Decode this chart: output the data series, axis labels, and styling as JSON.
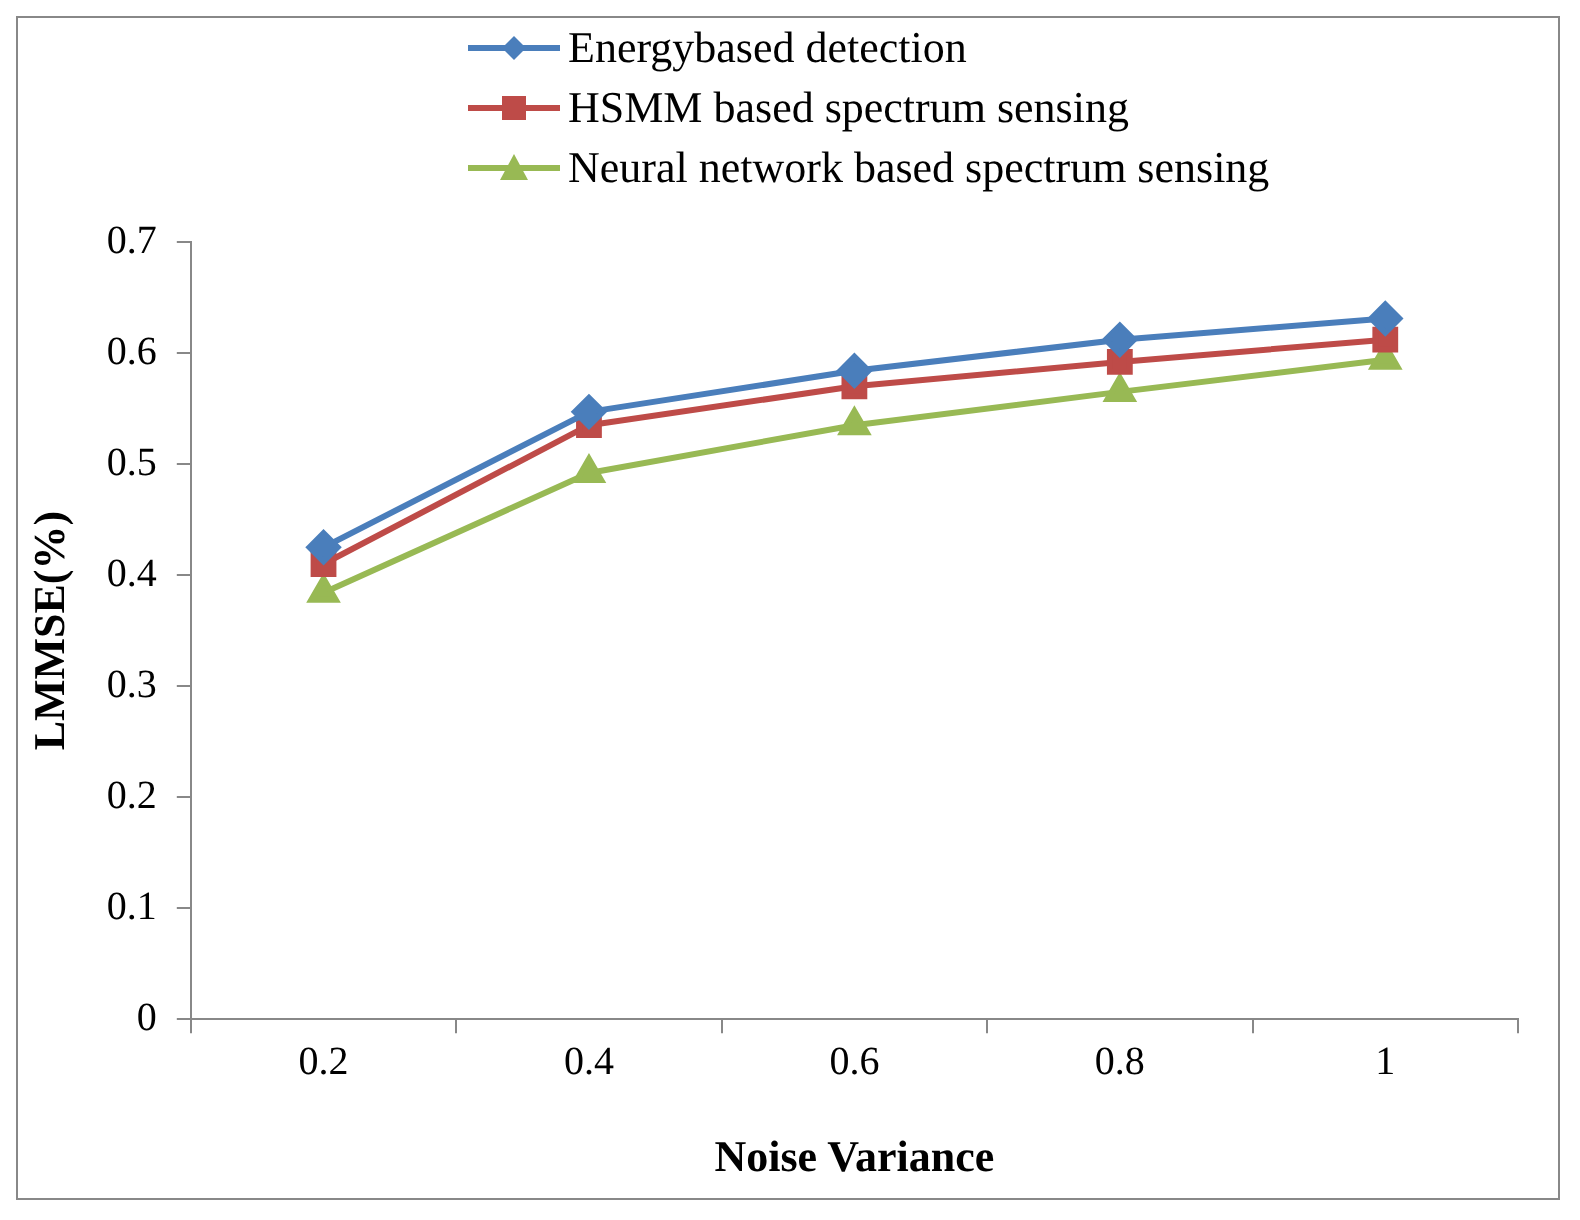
{
  "chart_data": {
    "type": "line",
    "xlabel": "Noise Variance",
    "ylabel": "LMMSE(%)",
    "categories": [
      "0.2",
      "0.4",
      "0.6",
      "0.8",
      "1"
    ],
    "series": [
      {
        "name": "Energybased detection",
        "color": "#4a7ebb",
        "marker": "diamond",
        "values": [
          0.425,
          0.547,
          0.584,
          0.612,
          0.631
        ]
      },
      {
        "name": "HSMM based spectrum sensing",
        "color": "#be4b48",
        "marker": "square",
        "values": [
          0.41,
          0.535,
          0.57,
          0.592,
          0.612
        ]
      },
      {
        "name": "Neural network based spectrum sensing",
        "color": "#98b954",
        "marker": "triangle",
        "values": [
          0.384,
          0.492,
          0.535,
          0.565,
          0.594
        ]
      }
    ],
    "ylim": [
      0,
      0.7
    ],
    "yticks": [
      0,
      0.1,
      0.2,
      0.3,
      0.4,
      0.5,
      0.6,
      0.7
    ],
    "grid": false,
    "legend": "top",
    "line_style": "solid"
  }
}
